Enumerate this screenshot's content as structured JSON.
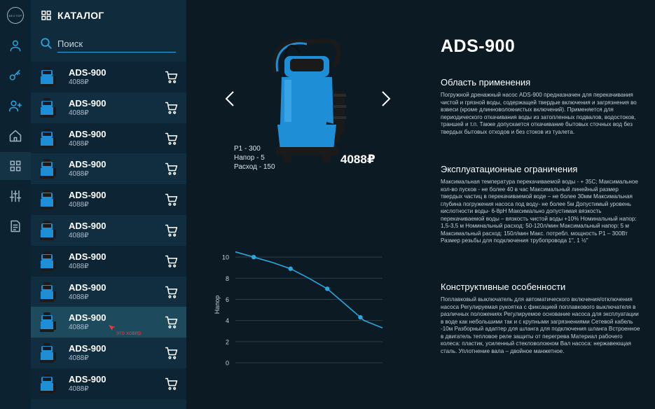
{
  "sidebar": {
    "logo_text": "ВЕХТОР",
    "icons": [
      "user-icon",
      "key-icon",
      "user-plus-icon",
      "home-icon",
      "grid-icon",
      "sliders-icon",
      "document-icon"
    ],
    "active_index": 4
  },
  "catalog": {
    "title": "КАТАЛОГ",
    "search_placeholder": "Поиск",
    "items": [
      {
        "name": "ADS-900",
        "price": "4088₽"
      },
      {
        "name": "ADS-900",
        "price": "4088₽"
      },
      {
        "name": "ADS-900",
        "price": "4088₽"
      },
      {
        "name": "ADS-900",
        "price": "4088₽"
      },
      {
        "name": "ADS-900",
        "price": "4088₽"
      },
      {
        "name": "ADS-900",
        "price": "4088₽"
      },
      {
        "name": "ADS-900",
        "price": "4088₽"
      },
      {
        "name": "ADS-900",
        "price": "4088₽"
      },
      {
        "name": "ADS-900",
        "price": "4088₽"
      },
      {
        "name": "ADS-900",
        "price": "4088₽"
      },
      {
        "name": "ADS-900",
        "price": "4088₽"
      }
    ],
    "hover_index": 8,
    "hover_note": "это ховер"
  },
  "product": {
    "title": "ADS-900",
    "price": "4088₽",
    "spec_power": "P1 - 300",
    "spec_head": "Напор - 5",
    "spec_flow": "Расход - 150",
    "colors": {
      "accent": "#2aa7e0",
      "pump_blue": "#1e8fd6",
      "pump_black": "#1a1a1a"
    }
  },
  "chart_data": {
    "type": "line",
    "x": [
      0,
      1,
      2,
      3,
      4,
      5,
      6,
      7,
      8
    ],
    "y": [
      10.5,
      10,
      9.5,
      8.9,
      8,
      7,
      5.5,
      4,
      3.3
    ],
    "markers_at": [
      1,
      3,
      5,
      6.8
    ],
    "ylabel": "Напор",
    "xlabel": "",
    "yticks": [
      0,
      2,
      4,
      6,
      8,
      10
    ],
    "ylim": [
      0,
      11
    ],
    "grid": true,
    "color": "#2aa7e0"
  },
  "description": {
    "sections": [
      {
        "heading": "Область применения",
        "text": "Погружной дренажный насос ADS-900 предназначен для перекачивания чистой и грязной воды, содержащей твердые включения и загрязнения во взвеси (кроме длинноволокнистых включений). Применяется для периодического откачивания воды из затопленных подвалов, водостоков, траншей и т.п. Также допускается откачивание бытовых сточных вод без твердых бытовых отходов и без стоков из туалета."
      },
      {
        "heading": "Эксплуатационные ограничения",
        "text": "Максимальная температура перекачиваемой воды - + 35С; Максимальное кол-во пусков - не более 40 в час Максимальный линейный размер твердых частиц в перекачиваемой воде – не более 30мм Максимальная глубина погружения насоса под воду- не более 5м Допустимый уровень кислотности воды- 6-8рН Максимально допустимая вязкость перекачиваемой воды – вязкость чистой воды +10% Номинальный напор: 1,5-3,5 м Номинальный расход: 50-120л/мин Максимальный напор: 5 м Максимальный расход: 150л/мин Макс. потребл. мощность Р1 – 300Вт Размер резьбы для подключения трубопровода 1\", 1 ½\""
      },
      {
        "heading": "Конструктивные особенности",
        "text": "Поплавковый выключатель для автоматического включения/отключения насоса Регулируемая рукоятка с фиксацией поплавкового выключателя в различных положениях Регулируемое основание насоса для эксплуатации в воде как небольшими так и с крупными загрязнениями Сетевой кабель -10м Разборный адаптер для шланга для подключения шланга Встроенное в двигатель тепловое реле защиты от перегрева Материал рабочего колеса: пластик, усиленный стекловолокном Вал насоса: нержавеющая сталь. Уплотнение вала – двойное манжетное."
      }
    ]
  }
}
